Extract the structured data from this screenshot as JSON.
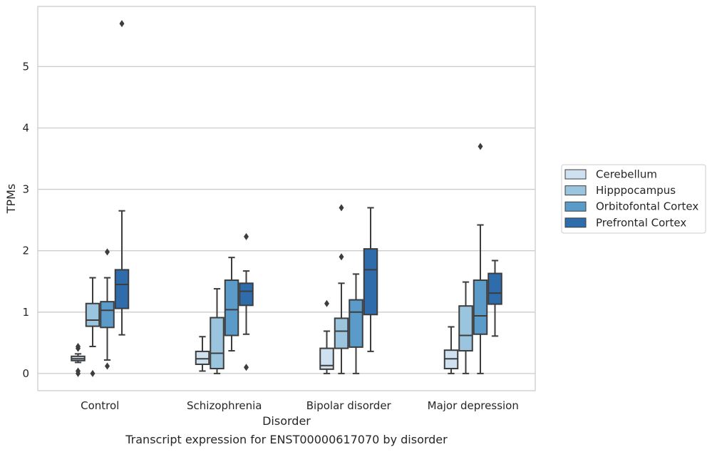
{
  "chart_data": {
    "type": "box",
    "title": "",
    "caption": "Transcript expression for ENST00000617070 by disorder",
    "xlabel": "Disorder",
    "ylabel": "TPMs",
    "ylim": [
      -0.28,
      5.98
    ],
    "yticks": [
      "0",
      "1",
      "2",
      "3",
      "4",
      "5"
    ],
    "grid": "horizontal",
    "legend_position": "right",
    "categories": [
      "Control",
      "Schizophrenia",
      "Bipolar disorder",
      "Major depression"
    ],
    "series": [
      {
        "name": "Cerebellum",
        "color": "#cfe1f1",
        "boxes": [
          {
            "whisker_low": 0.18,
            "q1": 0.21,
            "median": 0.24,
            "q3": 0.28,
            "whisker_high": 0.32,
            "outliers": [
              0.0,
              0.04,
              0.41,
              0.44
            ]
          },
          {
            "whisker_low": 0.04,
            "q1": 0.15,
            "median": 0.24,
            "q3": 0.36,
            "whisker_high": 0.6,
            "outliers": []
          },
          {
            "whisker_low": 0.0,
            "q1": 0.07,
            "median": 0.13,
            "q3": 0.41,
            "whisker_high": 0.69,
            "outliers": [
              1.14
            ]
          },
          {
            "whisker_low": 0.0,
            "q1": 0.08,
            "median": 0.24,
            "q3": 0.38,
            "whisker_high": 0.76,
            "outliers": []
          }
        ]
      },
      {
        "name": "Hipppocampus",
        "color": "#9bc5df",
        "boxes": [
          {
            "whisker_low": 0.44,
            "q1": 0.77,
            "median": 0.87,
            "q3": 1.14,
            "whisker_high": 1.56,
            "outliers": [
              0.0
            ]
          },
          {
            "whisker_low": 0.0,
            "q1": 0.08,
            "median": 0.33,
            "q3": 0.91,
            "whisker_high": 1.38,
            "outliers": []
          },
          {
            "whisker_low": 0.0,
            "q1": 0.41,
            "median": 0.69,
            "q3": 0.9,
            "whisker_high": 1.47,
            "outliers": [
              1.9,
              2.7
            ]
          },
          {
            "whisker_low": 0.0,
            "q1": 0.37,
            "median": 0.62,
            "q3": 1.1,
            "whisker_high": 1.49,
            "outliers": []
          }
        ]
      },
      {
        "name": "Orbitofontal Cortex",
        "color": "#5b9bc9",
        "boxes": [
          {
            "whisker_low": 0.22,
            "q1": 0.75,
            "median": 1.03,
            "q3": 1.17,
            "whisker_high": 1.56,
            "outliers": [
              0.12,
              1.98
            ]
          },
          {
            "whisker_low": 0.37,
            "q1": 0.62,
            "median": 1.04,
            "q3": 1.52,
            "whisker_high": 1.89,
            "outliers": []
          },
          {
            "whisker_low": 0.0,
            "q1": 0.43,
            "median": 1.0,
            "q3": 1.2,
            "whisker_high": 1.62,
            "outliers": []
          },
          {
            "whisker_low": 0.0,
            "q1": 0.64,
            "median": 0.94,
            "q3": 1.52,
            "whisker_high": 2.42,
            "outliers": [
              3.7
            ]
          }
        ]
      },
      {
        "name": "Prefrontal Cortex",
        "color": "#2e6cac",
        "boxes": [
          {
            "whisker_low": 0.63,
            "q1": 1.06,
            "median": 1.45,
            "q3": 1.69,
            "whisker_high": 2.65,
            "outliers": [
              5.7
            ]
          },
          {
            "whisker_low": 0.64,
            "q1": 1.11,
            "median": 1.34,
            "q3": 1.47,
            "whisker_high": 1.67,
            "outliers": [
              0.1,
              2.23
            ]
          },
          {
            "whisker_low": 0.36,
            "q1": 0.96,
            "median": 1.69,
            "q3": 2.03,
            "whisker_high": 2.7,
            "outliers": []
          },
          {
            "whisker_low": 0.61,
            "q1": 1.13,
            "median": 1.31,
            "q3": 1.63,
            "whisker_high": 1.84,
            "outliers": []
          }
        ]
      }
    ]
  }
}
